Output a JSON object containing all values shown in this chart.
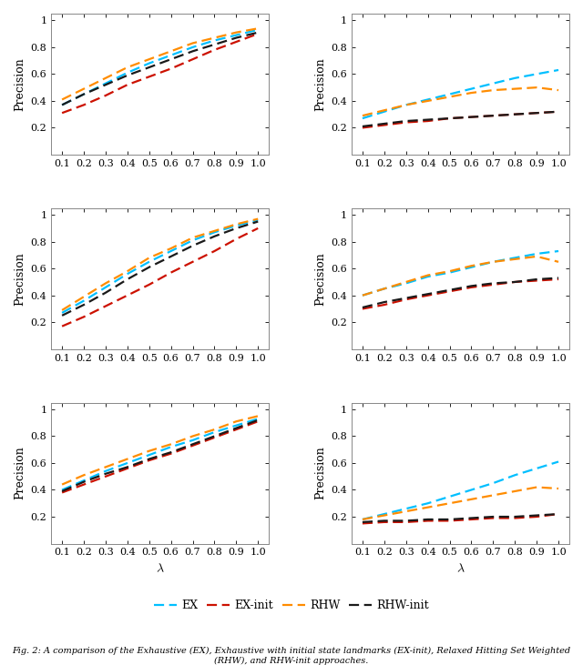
{
  "x": [
    0.1,
    0.2,
    0.3,
    0.4,
    0.5,
    0.6,
    0.7,
    0.8,
    0.9,
    1.0
  ],
  "colors": {
    "EX": "#00BFFF",
    "EX-init": "#CC1100",
    "RHW": "#FF8C00",
    "RHW-init": "#1a1a1a"
  },
  "legend_labels": [
    "EX",
    "EX-init",
    "RHW",
    "RHW-init"
  ],
  "subplot_data": [
    {
      "EX": [
        0.37,
        0.45,
        0.53,
        0.61,
        0.68,
        0.74,
        0.8,
        0.85,
        0.89,
        0.93
      ],
      "EX-init": [
        0.31,
        0.37,
        0.44,
        0.52,
        0.58,
        0.64,
        0.71,
        0.78,
        0.84,
        0.9
      ],
      "RHW": [
        0.41,
        0.49,
        0.57,
        0.65,
        0.71,
        0.77,
        0.83,
        0.87,
        0.91,
        0.94
      ],
      "RHW-init": [
        0.37,
        0.45,
        0.52,
        0.59,
        0.65,
        0.71,
        0.77,
        0.82,
        0.87,
        0.91
      ]
    },
    {
      "EX": [
        0.27,
        0.32,
        0.37,
        0.41,
        0.45,
        0.49,
        0.53,
        0.57,
        0.6,
        0.63
      ],
      "EX-init": [
        0.2,
        0.22,
        0.24,
        0.25,
        0.27,
        0.28,
        0.29,
        0.3,
        0.31,
        0.32
      ],
      "RHW": [
        0.29,
        0.33,
        0.37,
        0.4,
        0.43,
        0.46,
        0.48,
        0.49,
        0.5,
        0.48
      ],
      "RHW-init": [
        0.21,
        0.23,
        0.25,
        0.26,
        0.27,
        0.28,
        0.29,
        0.3,
        0.31,
        0.32
      ]
    },
    {
      "EX": [
        0.27,
        0.36,
        0.46,
        0.56,
        0.65,
        0.73,
        0.81,
        0.87,
        0.92,
        0.96
      ],
      "EX-init": [
        0.17,
        0.24,
        0.32,
        0.4,
        0.48,
        0.57,
        0.65,
        0.73,
        0.82,
        0.9
      ],
      "RHW": [
        0.29,
        0.39,
        0.49,
        0.58,
        0.68,
        0.75,
        0.83,
        0.88,
        0.93,
        0.97
      ],
      "RHW-init": [
        0.25,
        0.33,
        0.42,
        0.52,
        0.61,
        0.69,
        0.77,
        0.84,
        0.9,
        0.95
      ]
    },
    {
      "EX": [
        0.4,
        0.45,
        0.49,
        0.54,
        0.57,
        0.61,
        0.65,
        0.68,
        0.71,
        0.73
      ],
      "EX-init": [
        0.3,
        0.33,
        0.37,
        0.4,
        0.43,
        0.46,
        0.48,
        0.5,
        0.51,
        0.52
      ],
      "RHW": [
        0.4,
        0.45,
        0.5,
        0.55,
        0.58,
        0.62,
        0.65,
        0.67,
        0.69,
        0.65
      ],
      "RHW-init": [
        0.31,
        0.35,
        0.38,
        0.41,
        0.44,
        0.47,
        0.49,
        0.5,
        0.52,
        0.53
      ]
    },
    {
      "EX": [
        0.4,
        0.47,
        0.54,
        0.6,
        0.66,
        0.72,
        0.77,
        0.83,
        0.88,
        0.93
      ],
      "EX-init": [
        0.38,
        0.44,
        0.5,
        0.56,
        0.62,
        0.67,
        0.73,
        0.79,
        0.85,
        0.91
      ],
      "RHW": [
        0.44,
        0.51,
        0.57,
        0.63,
        0.69,
        0.74,
        0.8,
        0.85,
        0.91,
        0.95
      ],
      "RHW-init": [
        0.39,
        0.46,
        0.52,
        0.57,
        0.63,
        0.68,
        0.74,
        0.8,
        0.86,
        0.92
      ]
    },
    {
      "EX": [
        0.18,
        0.22,
        0.26,
        0.3,
        0.35,
        0.4,
        0.45,
        0.51,
        0.56,
        0.61
      ],
      "EX-init": [
        0.15,
        0.16,
        0.16,
        0.17,
        0.17,
        0.18,
        0.19,
        0.19,
        0.2,
        0.22
      ],
      "RHW": [
        0.18,
        0.21,
        0.24,
        0.27,
        0.3,
        0.33,
        0.36,
        0.39,
        0.42,
        0.41
      ],
      "RHW-init": [
        0.16,
        0.17,
        0.17,
        0.18,
        0.18,
        0.19,
        0.2,
        0.2,
        0.21,
        0.22
      ]
    }
  ],
  "ylabel": "Precision",
  "xlabel": "$\\lambda$",
  "xlim": [
    0.05,
    1.05
  ],
  "xticks": [
    0.1,
    0.2,
    0.3,
    0.4,
    0.5,
    0.6,
    0.7,
    0.8,
    0.9,
    1.0
  ],
  "yticks": [
    0.2,
    0.4,
    0.6,
    0.8,
    1.0
  ],
  "ylim_left": [
    0.0,
    1.05
  ],
  "ylim_right": [
    0.0,
    1.05
  ],
  "line_width": 1.6,
  "dash_pattern": [
    5,
    2.5
  ],
  "font_size": 9,
  "legend_fontsize": 9,
  "caption": "Fig. 2: A comparison of the Exhaustive (EX), Exhaustive with initial state landmarks (EX-init), Relaxed Hitting Set Weighted (RHW), and RHW-init approaches."
}
